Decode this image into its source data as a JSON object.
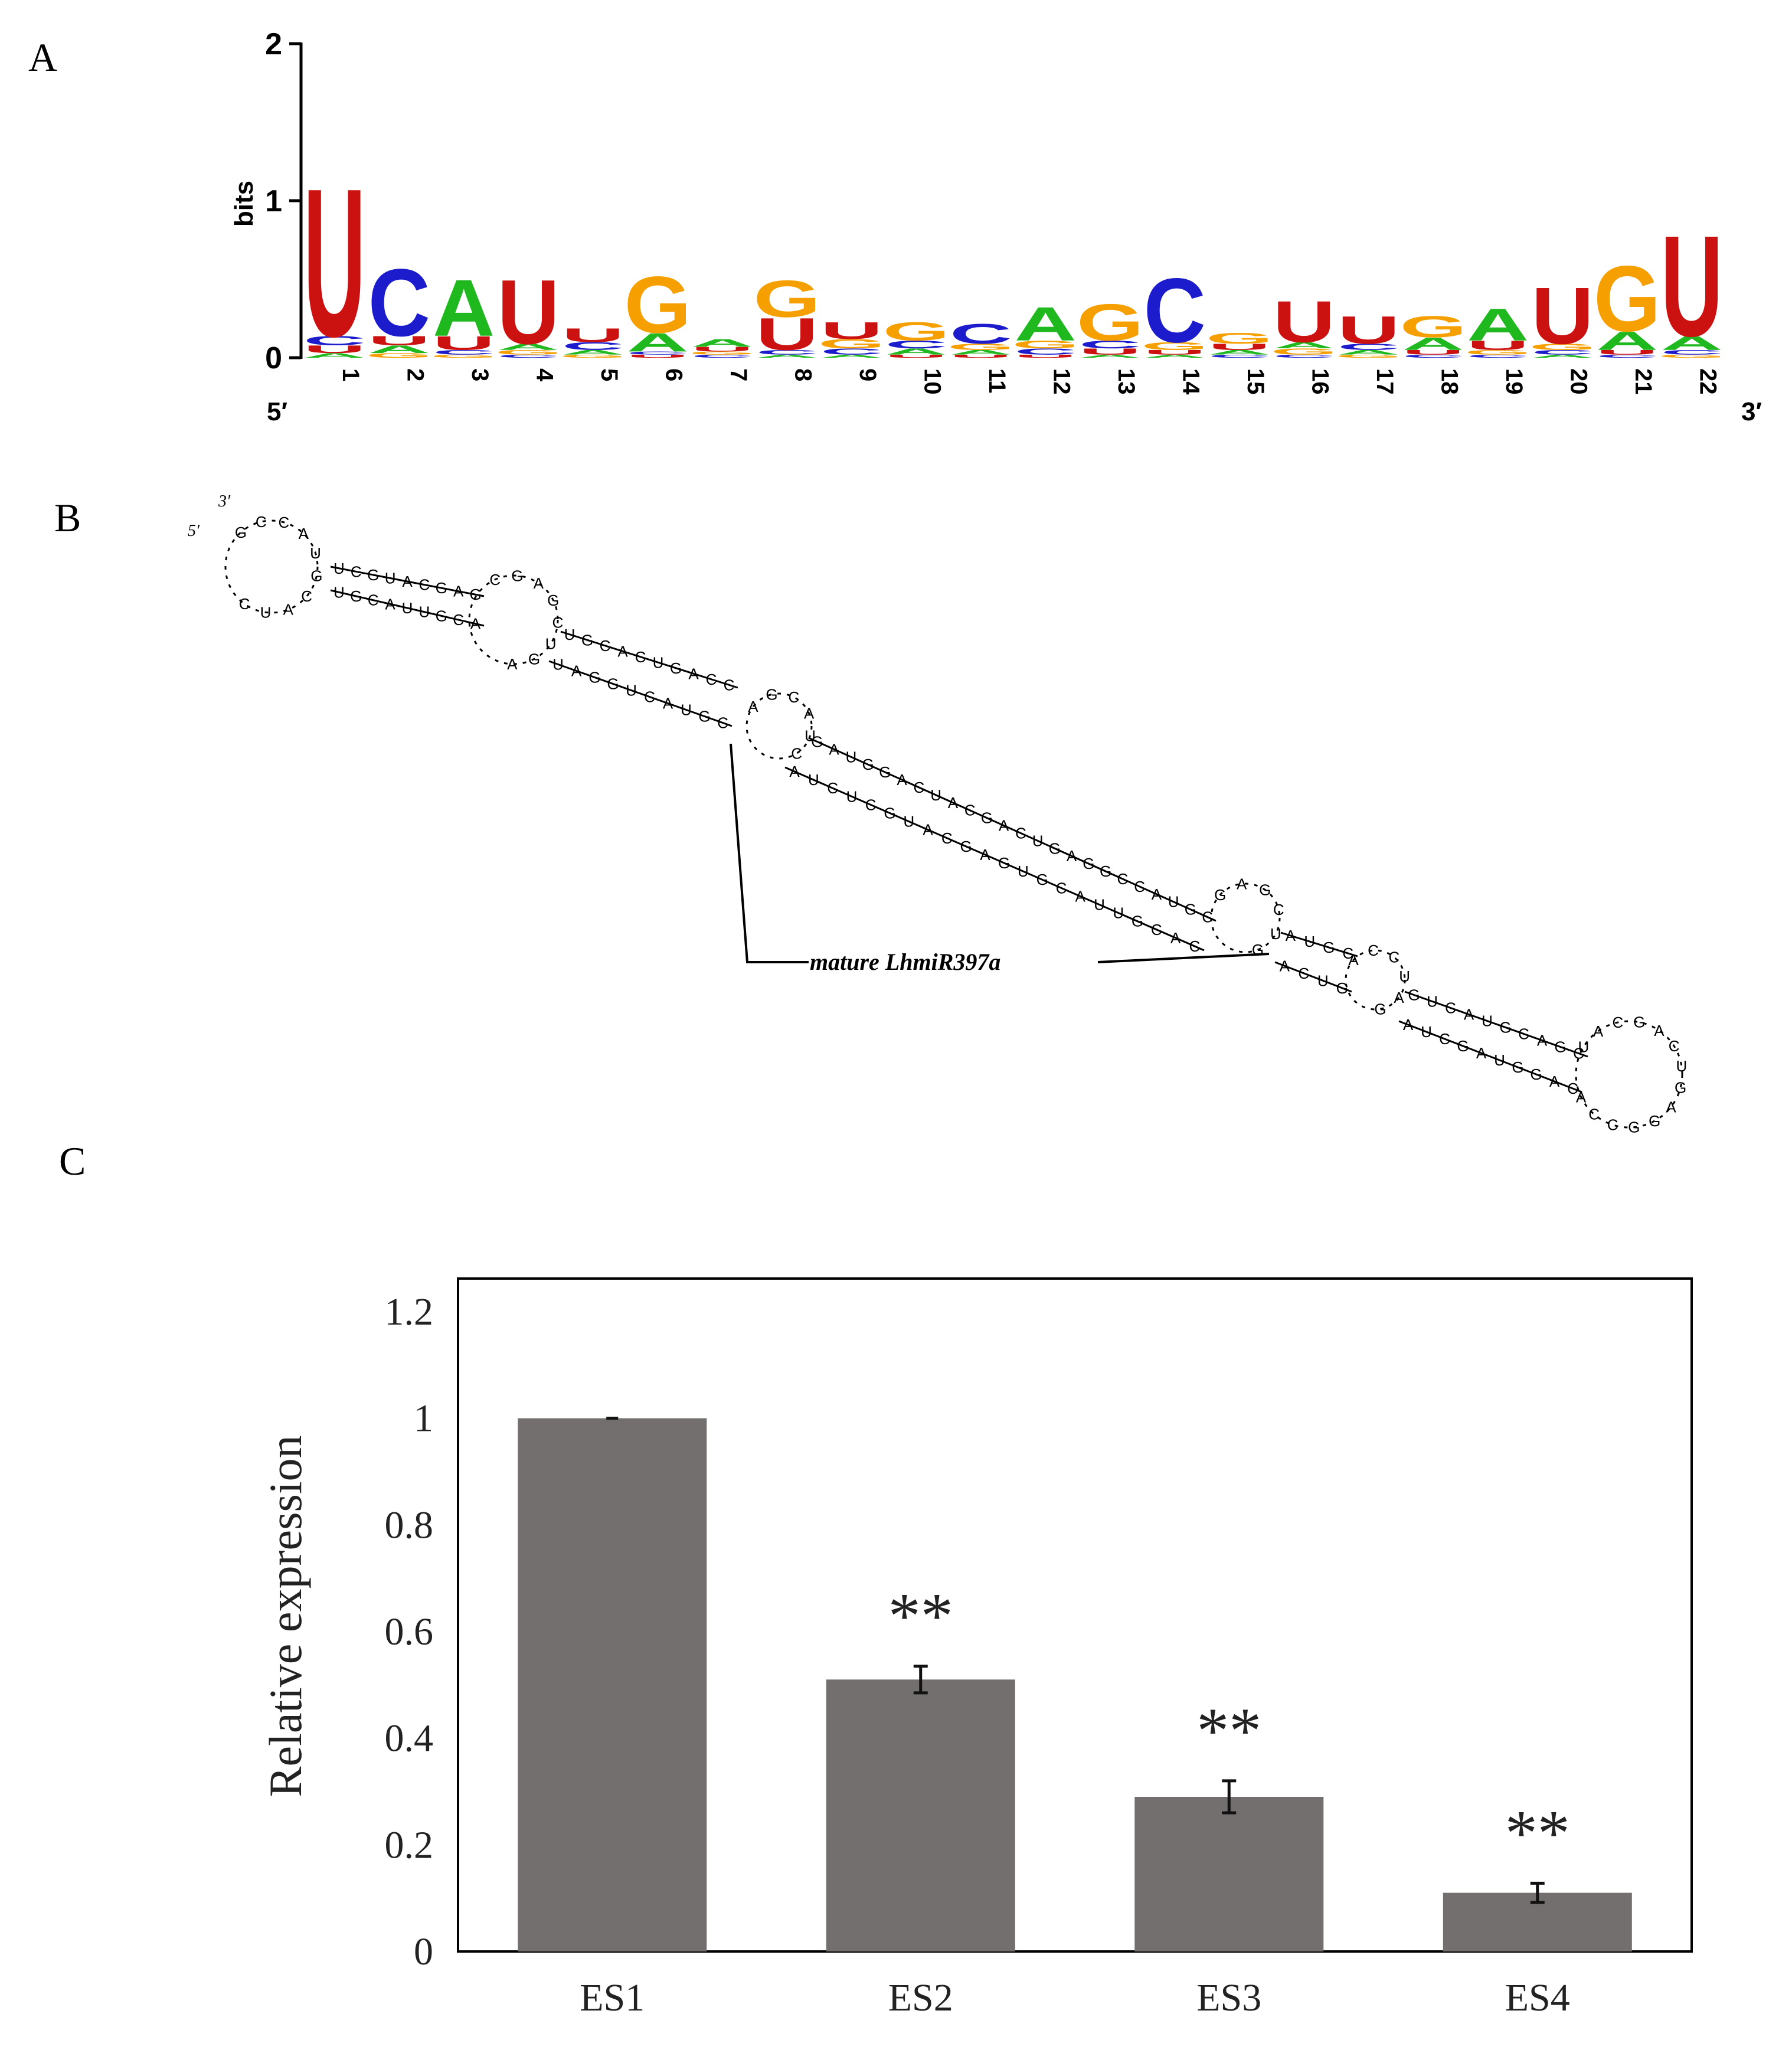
{
  "panels": {
    "a": "A",
    "b": "B",
    "c": "C"
  },
  "colors": {
    "A": "#1fb81f",
    "C": "#1c1ccc",
    "G": "#f5a000",
    "U": "#cc1111",
    "bar": "#736f6e",
    "helix_line": "#000000"
  },
  "logo": {
    "ylabel": "bits",
    "yticks": [
      "0",
      "1",
      "2"
    ],
    "five_prime": "5′",
    "three_prime": "3′",
    "positions": [
      "1",
      "2",
      "3",
      "4",
      "5",
      "6",
      "7",
      "8",
      "9",
      "10",
      "11",
      "12",
      "13",
      "14",
      "15",
      "16",
      "17",
      "18",
      "19",
      "20",
      "21",
      "22"
    ]
  },
  "structure": {
    "five_prime": "5′",
    "three_prime": "3′",
    "callout": "mature  LhmiR397a"
  },
  "chart_data": [
    {
      "type": "logo",
      "ylabel": "bits",
      "ylim": [
        0,
        2
      ],
      "positions": [
        {
          "pos": 1,
          "stack": [
            [
              "U",
              0.97
            ],
            [
              "C",
              0.06
            ],
            [
              "U",
              0.05
            ],
            [
              "A",
              0.03
            ]
          ]
        },
        {
          "pos": 2,
          "stack": [
            [
              "C",
              0.44
            ],
            [
              "A",
              0.05
            ],
            [
              "U",
              0.06
            ],
            [
              "G",
              0.03
            ]
          ]
        },
        {
          "pos": 3,
          "stack": [
            [
              "A",
              0.37
            ],
            [
              "U",
              0.09
            ],
            [
              "C",
              0.03
            ],
            [
              "G",
              0.02
            ]
          ]
        },
        {
          "pos": 4,
          "stack": [
            [
              "U",
              0.42
            ],
            [
              "A",
              0.04
            ],
            [
              "G",
              0.03
            ],
            [
              "C",
              0.02
            ]
          ]
        },
        {
          "pos": 5,
          "stack": [
            [
              "U",
              0.09
            ],
            [
              "C",
              0.05
            ],
            [
              "A",
              0.03
            ],
            [
              "G",
              0.02
            ]
          ]
        },
        {
          "pos": 6,
          "stack": [
            [
              "G",
              0.37
            ],
            [
              "A",
              0.12
            ],
            [
              "U",
              0.02
            ],
            [
              "C",
              0.02
            ]
          ]
        },
        {
          "pos": 7,
          "stack": [
            [
              "A",
              0.05
            ],
            [
              "U",
              0.03
            ],
            [
              "C",
              0.02
            ],
            [
              "G",
              0.02
            ]
          ]
        },
        {
          "pos": 8,
          "stack": [
            [
              "G",
              0.24
            ],
            [
              "U",
              0.21
            ],
            [
              "C",
              0.03
            ],
            [
              "A",
              0.02
            ]
          ]
        },
        {
          "pos": 9,
          "stack": [
            [
              "U",
              0.11
            ],
            [
              "G",
              0.06
            ],
            [
              "C",
              0.04
            ],
            [
              "A",
              0.02
            ]
          ]
        },
        {
          "pos": 10,
          "stack": [
            [
              "G",
              0.12
            ],
            [
              "C",
              0.05
            ],
            [
              "A",
              0.04
            ],
            [
              "U",
              0.02
            ]
          ]
        },
        {
          "pos": 11,
          "stack": [
            [
              "C",
              0.13
            ],
            [
              "G",
              0.04
            ],
            [
              "A",
              0.03
            ],
            [
              "U",
              0.02
            ]
          ]
        },
        {
          "pos": 12,
          "stack": [
            [
              "A",
              0.22
            ],
            [
              "G",
              0.05
            ],
            [
              "C",
              0.04
            ],
            [
              "U",
              0.02
            ]
          ]
        },
        {
          "pos": 13,
          "stack": [
            [
              "G",
              0.24
            ],
            [
              "C",
              0.05
            ],
            [
              "U",
              0.04
            ],
            [
              "A",
              0.02
            ]
          ]
        },
        {
          "pos": 14,
          "stack": [
            [
              "C",
              0.42
            ],
            [
              "G",
              0.05
            ],
            [
              "U",
              0.03
            ],
            [
              "A",
              0.02
            ]
          ]
        },
        {
          "pos": 15,
          "stack": [
            [
              "G",
              0.07
            ],
            [
              "U",
              0.04
            ],
            [
              "A",
              0.03
            ],
            [
              "C",
              0.02
            ]
          ]
        },
        {
          "pos": 16,
          "stack": [
            [
              "U",
              0.27
            ],
            [
              "G",
              0.04
            ],
            [
              "A",
              0.04
            ],
            [
              "C",
              0.02
            ]
          ]
        },
        {
          "pos": 17,
          "stack": [
            [
              "U",
              0.18
            ],
            [
              "C",
              0.04
            ],
            [
              "A",
              0.03
            ],
            [
              "G",
              0.02
            ]
          ]
        },
        {
          "pos": 18,
          "stack": [
            [
              "G",
              0.14
            ],
            [
              "A",
              0.08
            ],
            [
              "U",
              0.03
            ],
            [
              "C",
              0.02
            ]
          ]
        },
        {
          "pos": 19,
          "stack": [
            [
              "A",
              0.21
            ],
            [
              "U",
              0.06
            ],
            [
              "G",
              0.03
            ],
            [
              "C",
              0.02
            ]
          ]
        },
        {
          "pos": 20,
          "stack": [
            [
              "U",
              0.37
            ],
            [
              "G",
              0.04
            ],
            [
              "C",
              0.03
            ],
            [
              "A",
              0.02
            ]
          ]
        },
        {
          "pos": 21,
          "stack": [
            [
              "G",
              0.43
            ],
            [
              "A",
              0.12
            ],
            [
              "U",
              0.03
            ],
            [
              "C",
              0.02
            ]
          ]
        },
        {
          "pos": 22,
          "stack": [
            [
              "U",
              0.66
            ],
            [
              "A",
              0.09
            ],
            [
              "C",
              0.03
            ],
            [
              "G",
              0.02
            ]
          ]
        }
      ]
    },
    {
      "type": "bar",
      "categories": [
        "ES1",
        "ES2",
        "ES3",
        "ES4"
      ],
      "values": [
        1.0,
        0.51,
        0.29,
        0.11
      ],
      "errors": [
        0.0,
        0.025,
        0.03,
        0.018
      ],
      "annotations": [
        "",
        "**",
        "**",
        "**"
      ],
      "yticks": [
        "0",
        "0.2",
        "0.4",
        "0.6",
        "0.8",
        "1",
        "1.2"
      ],
      "ylim": [
        0,
        1.2
      ],
      "ylabel": "Relative expression",
      "xlabel": ""
    }
  ]
}
